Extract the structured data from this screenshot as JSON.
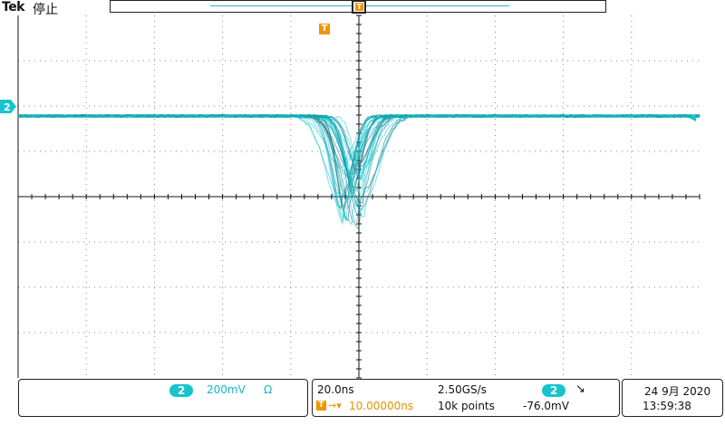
{
  "header": {
    "brand": "Tek",
    "acq_status": "停止",
    "trigger_marker_label": "T"
  },
  "channel": {
    "number": "2",
    "scale": "200mV",
    "coupling_symbol": "Ω",
    "color": "#16c4d0"
  },
  "timebase": {
    "scale": "20.0ns",
    "sample_rate": "2.50GS/s",
    "trigger_delay": "10.00000ns",
    "record_length": "10k points"
  },
  "trigger": {
    "source": "2",
    "slope_symbol": "↘",
    "level": "-76.0mV",
    "color": "#f29400"
  },
  "datetime": {
    "date": "24 9月 2020",
    "time": "13:59:38"
  }
}
